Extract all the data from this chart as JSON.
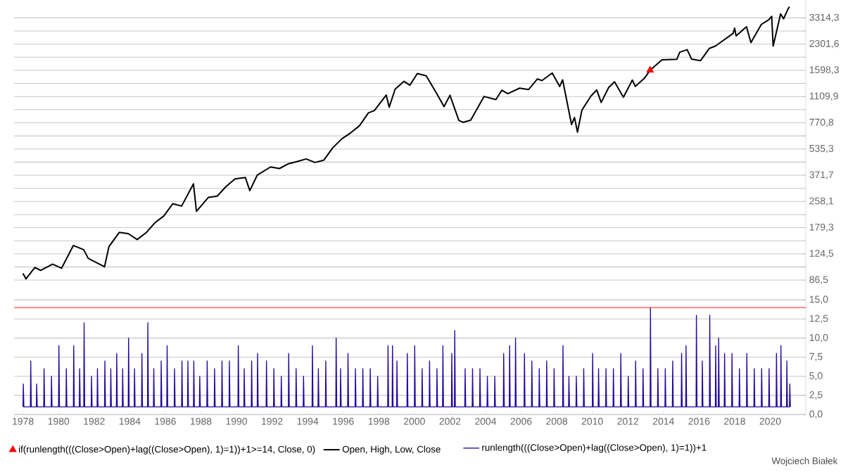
{
  "chart_data": [
    {
      "type": "line",
      "log": "y",
      "grid": "y",
      "legend": "bottom",
      "tick_labels": "y",
      "xlim": [
        "1977-07",
        "2022-01"
      ],
      "xticks": [
        "1978",
        "1980",
        "1982",
        "1984",
        "1986",
        "1988",
        "1990",
        "1992",
        "1994",
        "1996",
        "1998",
        "2000",
        "2002",
        "2004",
        "2006",
        "2008",
        "2010",
        "2012",
        "2014",
        "2016",
        "2018",
        "2020"
      ],
      "ylim": [
        76.2,
        4250
      ],
      "yticks": [
        {
          "value": 86.5,
          "label": "86,5"
        },
        {
          "value": 103.8,
          "label": null
        },
        {
          "value": 124.5,
          "label": "124,5"
        },
        {
          "value": 149.4,
          "label": null
        },
        {
          "value": 179.3,
          "label": "179,3"
        },
        {
          "value": 215.1,
          "label": null
        },
        {
          "value": 258.1,
          "label": "258,1"
        },
        {
          "value": 309.7,
          "label": null
        },
        {
          "value": 371.7,
          "label": "371,7"
        },
        {
          "value": 446.0,
          "label": null
        },
        {
          "value": 535.3,
          "label": "535,3"
        },
        {
          "value": 642.3,
          "label": null
        },
        {
          "value": 770.8,
          "label": "770,8"
        },
        {
          "value": 925.0,
          "label": null
        },
        {
          "value": 1109.9,
          "label": "1109,9"
        },
        {
          "value": 1331.9,
          "label": null
        },
        {
          "value": 1598.3,
          "label": "1598,3"
        },
        {
          "value": 1918.0,
          "label": null
        },
        {
          "value": 2301.6,
          "label": "2301,6"
        },
        {
          "value": 2762.0,
          "label": null
        },
        {
          "value": 3314.3,
          "label": "3314,3"
        }
      ],
      "series": [
        {
          "name": "if(runlength(((Close>Open)+lag((Close>Open), 1)=1))+1>=14, Close, 0)",
          "type": "scatter",
          "marker": "triangle",
          "color": "#ff0000",
          "x": [
            "2013-04"
          ],
          "values": [
            1600
          ]
        },
        {
          "name": "Open, High, Low, Close",
          "type": "line",
          "marker": "none",
          "line_style": "solid",
          "color": "#000000",
          "x": [
            "1978-01",
            "1978-03",
            "1978-09",
            "1979-01",
            "1979-09",
            "1980-03",
            "1980-11",
            "1981-06",
            "1981-09",
            "1982-08",
            "1982-11",
            "1983-06",
            "1983-12",
            "1984-06",
            "1984-12",
            "1985-06",
            "1985-12",
            "1986-06",
            "1986-12",
            "1987-08",
            "1987-10",
            "1988-06",
            "1988-12",
            "1989-06",
            "1989-12",
            "1990-07",
            "1990-10",
            "1991-03",
            "1991-12",
            "1992-06",
            "1992-12",
            "1993-06",
            "1993-12",
            "1994-06",
            "1994-12",
            "1995-06",
            "1995-12",
            "1996-06",
            "1996-12",
            "1997-06",
            "1997-10",
            "1998-06",
            "1998-08",
            "1998-12",
            "1999-06",
            "1999-10",
            "2000-03",
            "2000-09",
            "2001-04",
            "2001-09",
            "2002-01",
            "2002-07",
            "2002-10",
            "2003-03",
            "2003-12",
            "2004-08",
            "2004-12",
            "2005-04",
            "2005-12",
            "2006-06",
            "2006-12",
            "2007-03",
            "2007-10",
            "2008-03",
            "2008-05",
            "2008-11",
            "2009-01",
            "2009-03",
            "2009-06",
            "2009-12",
            "2010-04",
            "2010-07",
            "2010-12",
            "2011-04",
            "2011-10",
            "2012-04",
            "2012-06",
            "2012-12",
            "2013-04",
            "2013-12",
            "2014-10",
            "2014-12",
            "2015-05",
            "2015-08",
            "2016-02",
            "2016-08",
            "2016-12",
            "2017-12",
            "2018-01",
            "2018-02",
            "2018-09",
            "2018-12",
            "2019-07",
            "2019-12",
            "2020-02",
            "2020-03",
            "2020-08",
            "2020-10",
            "2021-01",
            "2021-02"
          ],
          "values": [
            95,
            88,
            103,
            99,
            108,
            102,
            140,
            132,
            117,
            104,
            138,
            168,
            165,
            152,
            167,
            192,
            211,
            250,
            242,
            330,
            225,
            273,
            278,
            318,
            353,
            360,
            300,
            372,
            417,
            408,
            436,
            450,
            466,
            444,
            459,
            545,
            616,
            670,
            740,
            885,
            914,
            1133,
            957,
            1229,
            1372,
            1300,
            1530,
            1480,
            1160,
            965,
            1130,
            797,
            776,
            800,
            1111,
            1064,
            1212,
            1156,
            1248,
            1223,
            1418,
            1387,
            1540,
            1276,
            1400,
            752,
            830,
            677,
            919,
            1115,
            1217,
            1022,
            1257,
            1363,
            1099,
            1397,
            1278,
            1426,
            1600,
            1848,
            1862,
            2058,
            2130,
            1867,
            1829,
            2170,
            2238,
            2673,
            2872,
            2581,
            2930,
            2351,
            3025,
            3230,
            3386,
            2237,
            3500,
            3270,
            3750,
            3870
          ]
        }
      ]
    },
    {
      "type": "line",
      "grid": "y",
      "legend": "bottom",
      "xlim": [
        "1977-07",
        "2022-01"
      ],
      "xticks": [
        "1978",
        "1980",
        "1982",
        "1984",
        "1986",
        "1988",
        "1990",
        "1992",
        "1994",
        "1996",
        "1998",
        "2000",
        "2002",
        "2004",
        "2006",
        "2008",
        "2010",
        "2012",
        "2014",
        "2016",
        "2018",
        "2020"
      ],
      "ylim": [
        0,
        16.3
      ],
      "yticks": [
        {
          "value": 0,
          "label": "0,0"
        },
        {
          "value": 2.5,
          "label": "2,5"
        },
        {
          "value": 5,
          "label": "5,0"
        },
        {
          "value": 7.5,
          "label": "7,5"
        },
        {
          "value": 10,
          "label": "10,0"
        },
        {
          "value": 12.5,
          "label": "12,5"
        },
        {
          "value": 15,
          "label": "15,0"
        }
      ],
      "ref_lines": [
        {
          "axis": "y",
          "value": 14,
          "color": "#ff5050"
        }
      ],
      "annotations": [
        "Wojciech Białek"
      ],
      "series": [
        {
          "name": "runlength(((Close>Open)+lag((Close>Open), 1)=1))+1",
          "color": "#22069e",
          "marker": "none",
          "line_style": "solid",
          "x": [
            "1978-01-01",
            "1978-01-08",
            "1978-01-20",
            "1978-06-01",
            "1978-06-08",
            "1978-06-20",
            "1978-10-01",
            "1978-10-08",
            "1978-10-20",
            "1979-03-01",
            "1979-03-08",
            "1979-03-20",
            "1979-08-01",
            "1979-08-08",
            "1979-08-20",
            "1980-01-01",
            "1980-01-08",
            "1980-01-20",
            "1980-06-01",
            "1980-06-08",
            "1980-06-20",
            "1980-11-01",
            "1980-11-08",
            "1980-11-20",
            "1981-03-01",
            "1981-03-08",
            "1981-03-20",
            "1981-06-01",
            "1981-06-08",
            "1981-06-20",
            "1981-11-01",
            "1981-11-08",
            "1981-11-20",
            "1982-03-01",
            "1982-03-08",
            "1982-03-20",
            "1982-08-01",
            "1982-08-08",
            "1982-08-20",
            "1982-12-01",
            "1982-12-08",
            "1982-12-20",
            "1983-04-01",
            "1983-04-08",
            "1983-04-20",
            "1983-08-01",
            "1983-08-08",
            "1983-08-20",
            "1983-12-01",
            "1983-12-08",
            "1983-12-20",
            "1984-04-01",
            "1984-04-08",
            "1984-04-20",
            "1984-09-01",
            "1984-09-08",
            "1984-09-20",
            "1985-01-01",
            "1985-01-08",
            "1985-01-20",
            "1985-05-01",
            "1985-05-08",
            "1985-05-20",
            "1985-10-01",
            "1985-10-08",
            "1985-10-20",
            "1986-02-01",
            "1986-02-08",
            "1986-02-20",
            "1986-07-01",
            "1986-07-08",
            "1986-07-20",
            "1986-12-01",
            "1986-12-08",
            "1986-12-20",
            "1987-04-01",
            "1987-04-08",
            "1987-04-20",
            "1987-08-01",
            "1987-08-08",
            "1987-08-20",
            "1987-12-01",
            "1987-12-08",
            "1987-12-20",
            "1988-05-01",
            "1988-05-08",
            "1988-05-20",
            "1988-10-01",
            "1988-10-08",
            "1988-10-20",
            "1989-03-01",
            "1989-03-08",
            "1989-03-20",
            "1989-08-01",
            "1989-08-08",
            "1989-08-20",
            "1990-02-01",
            "1990-02-08",
            "1990-02-20",
            "1990-06-01",
            "1990-06-08",
            "1990-06-20",
            "1990-11-01",
            "1990-11-08",
            "1990-11-20",
            "1991-03-01",
            "1991-03-08",
            "1991-03-20",
            "1991-09-01",
            "1991-09-08",
            "1991-09-20",
            "1992-02-01",
            "1992-02-08",
            "1992-02-20",
            "1992-07-01",
            "1992-07-08",
            "1992-07-20",
            "1992-12-01",
            "1992-12-08",
            "1992-12-20",
            "1993-05-01",
            "1993-05-08",
            "1993-05-20",
            "1993-10-01",
            "1993-10-08",
            "1993-10-20",
            "1994-04-01",
            "1994-04-08",
            "1994-04-20",
            "1994-08-01",
            "1994-08-08",
            "1994-08-20",
            "1995-01-01",
            "1995-01-08",
            "1995-01-20",
            "1995-08-01",
            "1995-08-08",
            "1995-08-20",
            "1995-11-01",
            "1995-11-08",
            "1995-11-20",
            "1996-04-01",
            "1996-04-08",
            "1996-04-20",
            "1996-09-01",
            "1996-09-08",
            "1996-09-20",
            "1997-02-01",
            "1997-02-08",
            "1997-02-20",
            "1997-07-01",
            "1997-07-08",
            "1997-07-20",
            "1997-12-01",
            "1997-12-08",
            "1997-12-20",
            "1998-07-01",
            "1998-07-08",
            "1998-07-20",
            "1998-10-01",
            "1998-10-08",
            "1998-10-20",
            "1999-01-01",
            "1999-01-08",
            "1999-01-20",
            "1999-08-01",
            "1999-08-08",
            "1999-08-20",
            "2000-01-01",
            "2000-01-08",
            "2000-01-20",
            "2000-06-01",
            "2000-06-08",
            "2000-06-20",
            "2000-11-01",
            "2000-11-08",
            "2000-11-20",
            "2001-04-01",
            "2001-04-08",
            "2001-04-20",
            "2001-08-01",
            "2001-08-08",
            "2001-08-20",
            "2002-02-01",
            "2002-02-08",
            "2002-02-20",
            "2002-04-01",
            "2002-04-08",
            "2002-04-20",
            "2002-11-01",
            "2002-11-08",
            "2002-11-20",
            "2003-04-01",
            "2003-04-08",
            "2003-04-20",
            "2003-09-01",
            "2003-09-08",
            "2003-09-20",
            "2004-02-01",
            "2004-02-08",
            "2004-02-20",
            "2004-07-01",
            "2004-07-08",
            "2004-07-20",
            "2005-01-01",
            "2005-01-08",
            "2005-01-20",
            "2005-05-01",
            "2005-05-08",
            "2005-05-20",
            "2005-09-01",
            "2005-09-08",
            "2005-09-20",
            "2006-03-01",
            "2006-03-08",
            "2006-03-20",
            "2006-08-01",
            "2006-08-08",
            "2006-08-20",
            "2007-01-01",
            "2007-01-08",
            "2007-01-20",
            "2007-06-01",
            "2007-06-08",
            "2007-06-20",
            "2007-11-01",
            "2007-11-08",
            "2007-11-20",
            "2008-05-01",
            "2008-05-08",
            "2008-05-20",
            "2008-09-01",
            "2008-09-08",
            "2008-09-20",
            "2009-02-01",
            "2009-02-08",
            "2009-02-20",
            "2009-07-01",
            "2009-07-08",
            "2009-07-20",
            "2010-01-01",
            "2010-01-08",
            "2010-01-20",
            "2010-05-01",
            "2010-05-08",
            "2010-05-20",
            "2010-10-01",
            "2010-10-08",
            "2010-10-20",
            "2011-03-01",
            "2011-03-08",
            "2011-03-20",
            "2011-08-01",
            "2011-08-08",
            "2011-08-20",
            "2012-01-01",
            "2012-01-08",
            "2012-01-20",
            "2012-06-01",
            "2012-06-08",
            "2012-06-20",
            "2012-11-01",
            "2012-11-08",
            "2012-11-20",
            "2013-04-01",
            "2013-04-08",
            "2013-04-20",
            "2013-09-01",
            "2013-09-08",
            "2013-09-20",
            "2014-02-01",
            "2014-02-08",
            "2014-02-20",
            "2014-07-01",
            "2014-07-08",
            "2014-07-20",
            "2015-01-01",
            "2015-01-08",
            "2015-01-20",
            "2015-04-01",
            "2015-04-08",
            "2015-04-20",
            "2015-11-01",
            "2015-11-08",
            "2015-11-20",
            "2016-03-01",
            "2016-03-08",
            "2016-03-20",
            "2016-08-01",
            "2016-08-08",
            "2016-08-20",
            "2016-12-01",
            "2016-12-08",
            "2016-12-20",
            "2017-02-01",
            "2017-02-08",
            "2017-02-20",
            "2017-06-01",
            "2017-06-08",
            "2017-06-20",
            "2017-11-01",
            "2017-11-08",
            "2017-11-20",
            "2018-04-01",
            "2018-04-08",
            "2018-04-20",
            "2018-09-01",
            "2018-09-08",
            "2018-09-20",
            "2019-02-01",
            "2019-02-08",
            "2019-02-20",
            "2019-07-01",
            "2019-07-08",
            "2019-07-20",
            "2019-12-01",
            "2019-12-08",
            "2019-12-20",
            "2020-05-01",
            "2020-05-08",
            "2020-05-20",
            "2020-08-01",
            "2020-08-08",
            "2020-08-20",
            "2020-12-01",
            "2020-12-08",
            "2020-12-20",
            "2021-02-01",
            "2021-02-08",
            "2021-02-20"
          ],
          "values": [
            1,
            4,
            1,
            1,
            7,
            1,
            1,
            4,
            1,
            1,
            6,
            1,
            1,
            5,
            1,
            1,
            9,
            1,
            1,
            6,
            1,
            1,
            9,
            1,
            1,
            6,
            1,
            1,
            12,
            1,
            1,
            5,
            1,
            1,
            6,
            1,
            1,
            7,
            1,
            1,
            6,
            1,
            1,
            8,
            1,
            1,
            6,
            1,
            1,
            10,
            1,
            1,
            6,
            1,
            1,
            8,
            1,
            1,
            12,
            1,
            1,
            6,
            1,
            1,
            7,
            1,
            1,
            9,
            1,
            1,
            6,
            1,
            1,
            7,
            1,
            1,
            7,
            1,
            1,
            7,
            1,
            1,
            5,
            1,
            1,
            7,
            1,
            1,
            6,
            1,
            1,
            7,
            1,
            1,
            7,
            1,
            1,
            9,
            1,
            1,
            6,
            1,
            1,
            7,
            1,
            1,
            8,
            1,
            1,
            7,
            1,
            1,
            6,
            1,
            1,
            5,
            1,
            1,
            8,
            1,
            1,
            6,
            1,
            1,
            5,
            1,
            1,
            9,
            1,
            1,
            6,
            1,
            1,
            7,
            1,
            1,
            10,
            1,
            1,
            6,
            1,
            1,
            8,
            1,
            1,
            6,
            1,
            1,
            6,
            1,
            1,
            6,
            1,
            1,
            5,
            1,
            1,
            9,
            1,
            1,
            9,
            1,
            1,
            7,
            1,
            1,
            8,
            1,
            1,
            9,
            1,
            1,
            6,
            1,
            1,
            7,
            1,
            1,
            6,
            1,
            1,
            9,
            1,
            1,
            8,
            1,
            1,
            11,
            1,
            1,
            6,
            1,
            1,
            6,
            1,
            1,
            6,
            1,
            1,
            5,
            1,
            1,
            5,
            1,
            1,
            8,
            1,
            1,
            9,
            1,
            1,
            10,
            1,
            1,
            8,
            1,
            1,
            7,
            1,
            1,
            6,
            1,
            1,
            7,
            1,
            1,
            6,
            1,
            1,
            9,
            1,
            1,
            5,
            1,
            1,
            5,
            1,
            1,
            6,
            1,
            1,
            8,
            1,
            1,
            6,
            1,
            1,
            6,
            1,
            1,
            6,
            1,
            1,
            8,
            1,
            1,
            5,
            1,
            1,
            7,
            1,
            1,
            6,
            1,
            1,
            14,
            1,
            1,
            6,
            1,
            1,
            6,
            1,
            1,
            7,
            1,
            1,
            8,
            1,
            1,
            9,
            1,
            1,
            13,
            1,
            1,
            7,
            1,
            1,
            13,
            1,
            1,
            9,
            1,
            1,
            10,
            1,
            1,
            8,
            1,
            1,
            8,
            1,
            1,
            6,
            1,
            1,
            8,
            1,
            1,
            6,
            1,
            1,
            6,
            1,
            1,
            6,
            1,
            1,
            8,
            1,
            1,
            9,
            1,
            1,
            7,
            1,
            1,
            4,
            1
          ]
        }
      ]
    }
  ]
}
